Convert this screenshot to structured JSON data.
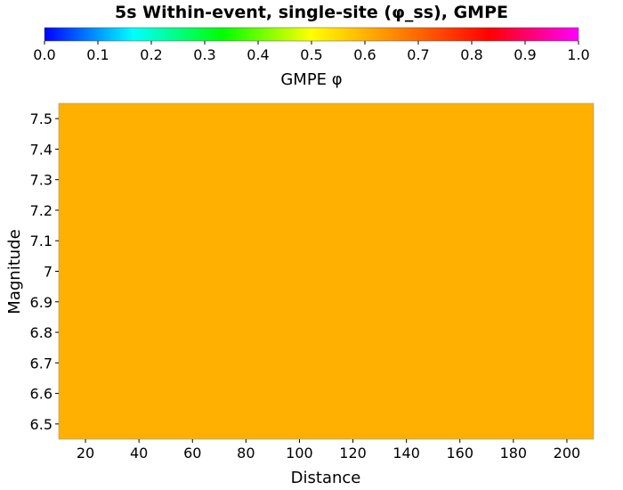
{
  "chart_data": {
    "type": "heatmap",
    "title": "5s Within-event, single-site (φ_ss), GMPE",
    "colorbar": {
      "label": "GMPE φ",
      "range": [
        0.0,
        1.0
      ],
      "ticks": [
        "0.0",
        "0.1",
        "0.2",
        "0.3",
        "0.4",
        "0.5",
        "0.6",
        "0.7",
        "0.8",
        "0.9",
        "1.0"
      ],
      "colors": [
        "#0000ff",
        "#00ffff",
        "#00ff00",
        "#ffff00",
        "#ff8000",
        "#ff0000",
        "#ff00ff"
      ]
    },
    "xlabel": "Distance",
    "ylabel": "Magnitude",
    "xlim": [
      10,
      210
    ],
    "ylim": [
      6.45,
      7.55
    ],
    "xticks": [
      20,
      40,
      60,
      80,
      100,
      120,
      140,
      160,
      180,
      200
    ],
    "yticks": [
      6.5,
      6.6,
      6.7,
      6.8,
      6.9,
      7,
      7.1,
      7.2,
      7.3,
      7.4,
      7.5
    ],
    "cells": [
      {
        "x": [
          10,
          210
        ],
        "y": [
          6.45,
          7.55
        ],
        "value": 0.61,
        "color": "#ffb000"
      }
    ]
  }
}
